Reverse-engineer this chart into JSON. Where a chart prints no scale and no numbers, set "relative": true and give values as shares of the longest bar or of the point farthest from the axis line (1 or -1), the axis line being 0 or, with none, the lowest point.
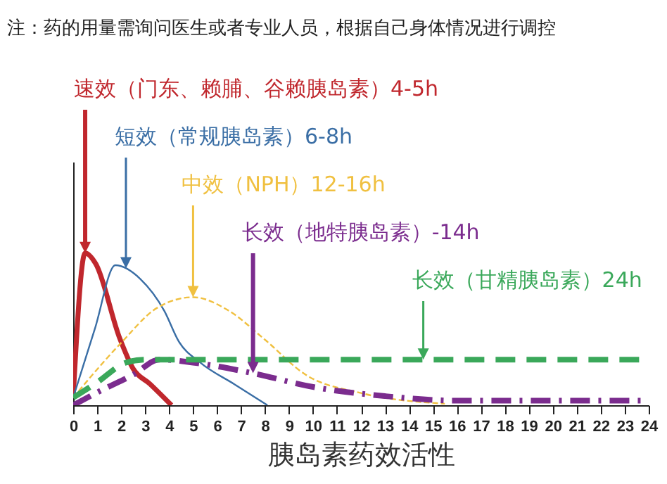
{
  "chart_data": {
    "type": "line",
    "relative": true,
    "title": "注：药的用量需询问医生或者专业人员，根据自己身体情况进行调控",
    "xlabel": "胰岛素药效活性",
    "xlim": [
      0,
      24
    ],
    "xticks": [
      0,
      1,
      2,
      3,
      4,
      5,
      6,
      7,
      8,
      9,
      10,
      11,
      12,
      13,
      14,
      15,
      16,
      17,
      18,
      19,
      20,
      21,
      22,
      23,
      24
    ],
    "grid": false,
    "marker": "none",
    "series": [
      {
        "color": "#c0272d",
        "line_style": "solid",
        "x": [
          0,
          0.5,
          0.94,
          1.94,
          2.5,
          3.2,
          4.1
        ],
        "values": [
          0.05,
          1,
          0.93,
          0.44,
          0.24,
          0.14,
          0
        ]
      },
      {
        "color": "#3a6ea5",
        "line_style": "solid",
        "x": [
          0,
          0.9,
          1.76,
          2.8,
          3.8,
          4.4,
          5.3,
          6.7,
          8.1
        ],
        "values": [
          0.05,
          0.5,
          0.92,
          0.83,
          0.62,
          0.42,
          0.28,
          0.14,
          0
        ]
      },
      {
        "color": "#f0c040",
        "line_style": "dashed",
        "x": [
          0,
          2,
          3.5,
          5,
          6.5,
          8,
          9.7,
          12,
          15.5
        ],
        "values": [
          0.05,
          0.41,
          0.64,
          0.71,
          0.62,
          0.43,
          0.2,
          0.08,
          0.01
        ]
      },
      {
        "color": "#7b2c8e",
        "line_style": "dashed",
        "x": [
          0,
          1.2,
          2.5,
          3.6,
          5,
          7.5,
          10,
          13,
          16,
          24
        ],
        "values": [
          0,
          0.1,
          0.2,
          0.3,
          0.28,
          0.21,
          0.12,
          0.06,
          0.03,
          0.03
        ]
      },
      {
        "color": "#3aa85a",
        "line_style": "dashed",
        "x": [
          0,
          1,
          2.2,
          3,
          24
        ],
        "values": [
          0.05,
          0.15,
          0.28,
          0.3,
          0.3
        ]
      }
    ],
    "annotations": [
      {
        "text": "速效（门东、赖脯、谷赖胰岛素）4-5h",
        "x": 0.5,
        "y": 1
      },
      {
        "text": "短效（常规胰岛素）6-8h",
        "x": 2.2,
        "y": 0.9
      },
      {
        "text": "中效（NPH）12-16h",
        "x": 5,
        "y": 0.71
      },
      {
        "text": "长效（地特胰岛素）-14h",
        "x": 7.5,
        "y": 0.21
      },
      {
        "text": "长效（甘精胰岛素）24h",
        "x": 14.6,
        "y": 0.3
      }
    ]
  }
}
